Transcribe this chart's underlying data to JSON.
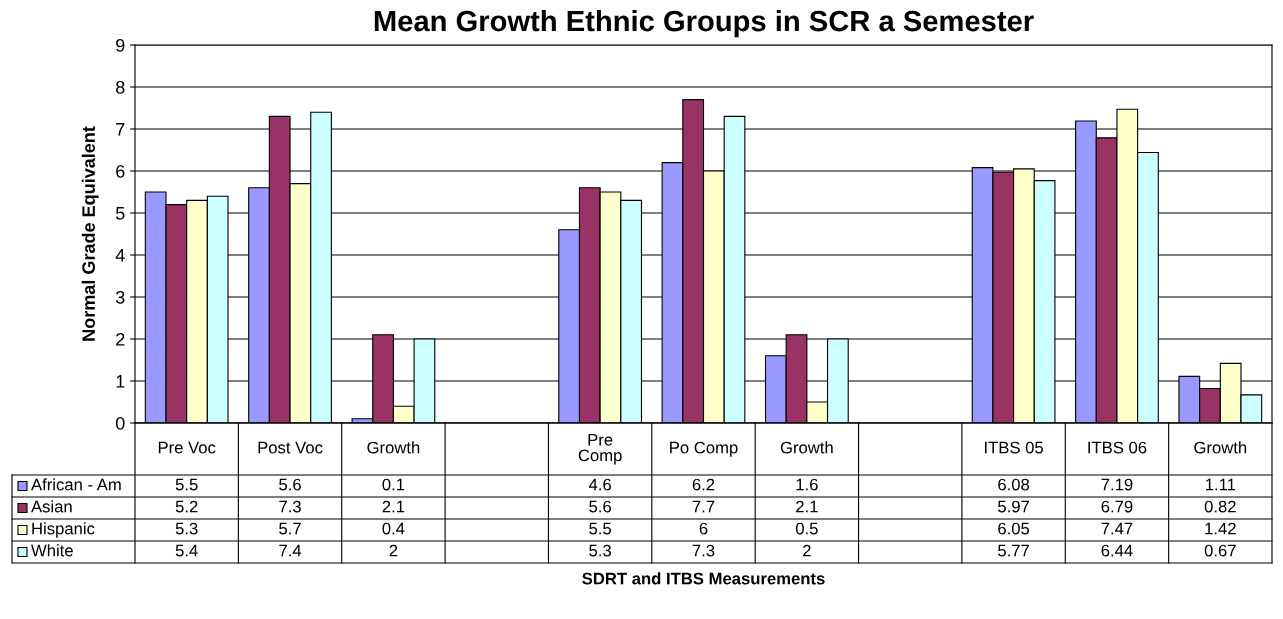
{
  "chart_data": {
    "type": "bar",
    "title": "Mean Growth Ethnic Groups in SCR a Semester",
    "annotations": [
      "SDRT and ITBS Measurements"
    ],
    "legend": "bottom left",
    "ylabel": "Normal Grade Equivalent",
    "categories": [
      "Pre Voc",
      "Post Voc",
      "Growth",
      null,
      "Pre\nComp",
      "Po Comp",
      "Growth",
      null,
      "ITBS 05",
      "ITBS 06",
      "Growth"
    ],
    "series": [
      {
        "name": "African - Am",
        "color": "#9999ff",
        "values": [
          5.5,
          5.6,
          0.1,
          null,
          4.6,
          6.2,
          1.6,
          null,
          6.08,
          7.19,
          1.11
        ]
      },
      {
        "name": "Asian",
        "color": "#993366",
        "values": [
          5.2,
          7.3,
          2.1,
          null,
          5.6,
          7.7,
          2.1,
          null,
          5.97,
          6.79,
          0.82
        ]
      },
      {
        "name": "Hispanic",
        "color": "#ffffcc",
        "values": [
          5.3,
          5.7,
          0.4,
          null,
          5.5,
          6,
          0.5,
          null,
          6.05,
          7.47,
          1.42
        ]
      },
      {
        "name": "White",
        "color": "#ccffff",
        "values": [
          5.4,
          7.4,
          2,
          null,
          5.3,
          7.3,
          2,
          null,
          5.77,
          6.44,
          0.67
        ]
      }
    ],
    "ylim": [
      0,
      9
    ],
    "yticks": [
      0,
      1,
      2,
      3,
      4,
      5,
      6,
      7,
      8,
      9
    ],
    "grid": "y",
    "data_labels": true
  }
}
